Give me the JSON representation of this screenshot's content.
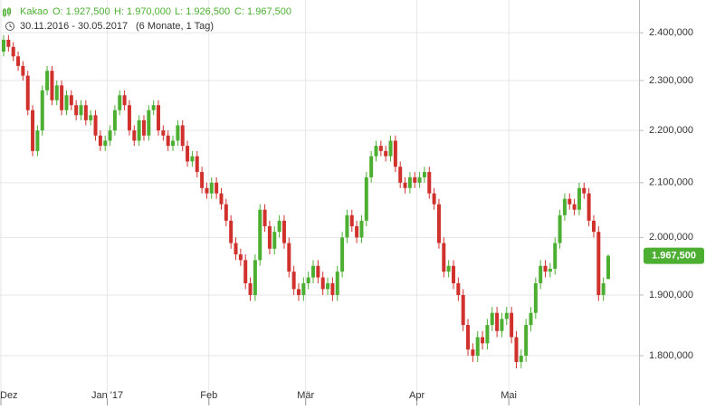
{
  "chart_data": {
    "type": "candlestick",
    "instrument": "Kakao",
    "header_values": [
      "O: 1.927,500",
      "H: 1.970,000",
      "L: 1.926,500",
      "C: 1.967,500"
    ],
    "date_range": "30.11.2016 - 30.05.2017",
    "period": "(6 Monate, 1 Tag)",
    "categories": [
      "Dez",
      null,
      null,
      null,
      null,
      null,
      null,
      null,
      null,
      null,
      null,
      null,
      null,
      null,
      null,
      null,
      null,
      null,
      null,
      null,
      null,
      null,
      "Jan '17",
      null,
      null,
      null,
      null,
      null,
      null,
      null,
      null,
      null,
      null,
      null,
      null,
      null,
      null,
      null,
      null,
      null,
      null,
      null,
      null,
      "Feb",
      null,
      null,
      null,
      null,
      null,
      null,
      null,
      null,
      null,
      null,
      null,
      null,
      null,
      null,
      null,
      null,
      null,
      null,
      null,
      "Mär",
      null,
      null,
      null,
      null,
      null,
      null,
      null,
      null,
      null,
      null,
      null,
      null,
      null,
      null,
      null,
      null,
      null,
      null,
      null,
      null,
      null,
      null,
      "Apr",
      null,
      null,
      null,
      null,
      null,
      null,
      null,
      null,
      null,
      null,
      null,
      null,
      null,
      null,
      null,
      null,
      null,
      null,
      "Mai",
      null,
      null,
      null,
      null,
      null,
      null,
      null,
      null,
      null,
      null,
      null,
      null,
      null,
      null,
      null,
      null,
      null,
      null,
      null,
      null
    ],
    "open": [
      2360,
      2385,
      2370,
      2350,
      2330,
      2310,
      2240,
      2160,
      2200,
      2280,
      2320,
      2260,
      2290,
      2240,
      2270,
      2250,
      2230,
      2250,
      2220,
      2230,
      2190,
      2170,
      2180,
      2200,
      2240,
      2270,
      2250,
      2200,
      2180,
      2220,
      2190,
      2240,
      2250,
      2200,
      2190,
      2170,
      2180,
      2210,
      2170,
      2140,
      2150,
      2120,
      2090,
      2080,
      2100,
      2080,
      2060,
      2030,
      1990,
      1970,
      1960,
      1920,
      1900,
      1960,
      2050,
      2020,
      1980,
      2010,
      2030,
      1990,
      1940,
      1910,
      1900,
      1920,
      1930,
      1950,
      1930,
      1910,
      1920,
      1900,
      1940,
      2000,
      2040,
      2020,
      2000,
      2030,
      2110,
      2150,
      2170,
      2160,
      2150,
      2180,
      2130,
      2100,
      2090,
      2110,
      2100,
      2110,
      2120,
      2080,
      2060,
      1990,
      1940,
      1950,
      1920,
      1900,
      1850,
      1810,
      1800,
      1830,
      1820,
      1850,
      1870,
      1840,
      1860,
      1870,
      1830,
      1790,
      1800,
      1850,
      1870,
      1920,
      1950,
      1940,
      1945,
      1990,
      2040,
      2070,
      2060,
      2050,
      2090,
      2080,
      2030,
      2010,
      1900,
      1927.5
    ],
    "high": [
      2395,
      2395,
      2380,
      2360,
      2340,
      2320,
      2250,
      2210,
      2290,
      2330,
      2330,
      2300,
      2300,
      2280,
      2280,
      2260,
      2260,
      2260,
      2240,
      2240,
      2200,
      2190,
      2210,
      2250,
      2280,
      2280,
      2260,
      2210,
      2230,
      2230,
      2250,
      2260,
      2260,
      2210,
      2200,
      2190,
      2220,
      2220,
      2180,
      2160,
      2160,
      2130,
      2100,
      2110,
      2110,
      2090,
      2070,
      2040,
      2000,
      1980,
      1970,
      1930,
      1970,
      2060,
      2060,
      2030,
      2020,
      2040,
      2040,
      2000,
      1950,
      1920,
      1930,
      1940,
      1960,
      1960,
      1940,
      1930,
      1930,
      1950,
      2010,
      2050,
      2050,
      2030,
      2040,
      2120,
      2160,
      2180,
      2180,
      2170,
      2190,
      2190,
      2140,
      2110,
      2120,
      2120,
      2120,
      2130,
      2130,
      2090,
      2070,
      2000,
      1960,
      1960,
      1930,
      1910,
      1860,
      1820,
      1840,
      1840,
      1860,
      1880,
      1880,
      1870,
      1880,
      1880,
      1840,
      1810,
      1860,
      1880,
      1930,
      1960,
      1960,
      1955,
      2000,
      2050,
      2080,
      2080,
      2070,
      2100,
      2100,
      2090,
      2040,
      2020,
      1930,
      1970
    ],
    "low": [
      2350,
      2360,
      2340,
      2320,
      2300,
      2230,
      2150,
      2150,
      2190,
      2270,
      2250,
      2250,
      2230,
      2230,
      2240,
      2220,
      2220,
      2210,
      2210,
      2180,
      2160,
      2160,
      2170,
      2190,
      2230,
      2240,
      2190,
      2170,
      2170,
      2180,
      2180,
      2230,
      2190,
      2180,
      2160,
      2160,
      2170,
      2160,
      2130,
      2130,
      2110,
      2080,
      2070,
      2070,
      2070,
      2050,
      2020,
      1980,
      1960,
      1950,
      1910,
      1890,
      1890,
      1950,
      2010,
      1970,
      1970,
      2000,
      1980,
      1930,
      1900,
      1890,
      1890,
      1910,
      1920,
      1920,
      1900,
      1900,
      1890,
      1890,
      1930,
      1990,
      2010,
      1990,
      1990,
      2020,
      2100,
      2140,
      2150,
      2140,
      2140,
      2120,
      2090,
      2080,
      2080,
      2090,
      2090,
      2100,
      2070,
      2050,
      1980,
      1930,
      1930,
      1910,
      1890,
      1840,
      1800,
      1790,
      1790,
      1810,
      1810,
      1840,
      1830,
      1830,
      1850,
      1820,
      1780,
      1780,
      1790,
      1840,
      1860,
      1910,
      1930,
      1930,
      1935,
      1980,
      2030,
      2050,
      2040,
      2040,
      2070,
      2020,
      2000,
      1890,
      1890,
      1926.5
    ],
    "close": [
      2385,
      2370,
      2350,
      2330,
      2310,
      2240,
      2160,
      2200,
      2280,
      2320,
      2260,
      2290,
      2240,
      2270,
      2250,
      2230,
      2250,
      2220,
      2230,
      2190,
      2170,
      2180,
      2200,
      2240,
      2270,
      2250,
      2200,
      2180,
      2220,
      2190,
      2240,
      2250,
      2200,
      2190,
      2170,
      2180,
      2210,
      2170,
      2140,
      2150,
      2120,
      2090,
      2080,
      2100,
      2080,
      2060,
      2030,
      1990,
      1970,
      1960,
      1920,
      1900,
      1960,
      2050,
      2020,
      1980,
      2010,
      2030,
      1990,
      1940,
      1910,
      1900,
      1920,
      1930,
      1950,
      1930,
      1910,
      1920,
      1900,
      1940,
      2000,
      2040,
      2020,
      2000,
      2030,
      2110,
      2150,
      2170,
      2160,
      2150,
      2180,
      2130,
      2100,
      2090,
      2110,
      2100,
      2110,
      2120,
      2080,
      2060,
      1990,
      1940,
      1950,
      1920,
      1900,
      1850,
      1810,
      1800,
      1830,
      1820,
      1850,
      1870,
      1840,
      1860,
      1870,
      1830,
      1790,
      1800,
      1850,
      1870,
      1920,
      1950,
      1940,
      1945,
      1990,
      2040,
      2070,
      2060,
      2050,
      2090,
      2080,
      2030,
      2010,
      1900,
      1920,
      1967.5
    ],
    "up_color": "#4caf32",
    "down_color": "#d0312d",
    "log_scale": true,
    "ylim": [
      1722,
      2471
    ],
    "yticks": [
      {
        "value": 1800,
        "label": "1.800,000"
      },
      {
        "value": 1900,
        "label": "1.900,000"
      },
      {
        "value": 2000,
        "label": "2.000,000"
      },
      {
        "value": 2100,
        "label": "2.100,000"
      },
      {
        "value": 2200,
        "label": "2.200,000"
      },
      {
        "value": 2300,
        "label": "2.300,000"
      },
      {
        "value": 2400,
        "label": "2.400,000"
      }
    ],
    "last_price": {
      "value": 1967.5,
      "label": "1.967,500"
    },
    "grid": true
  }
}
